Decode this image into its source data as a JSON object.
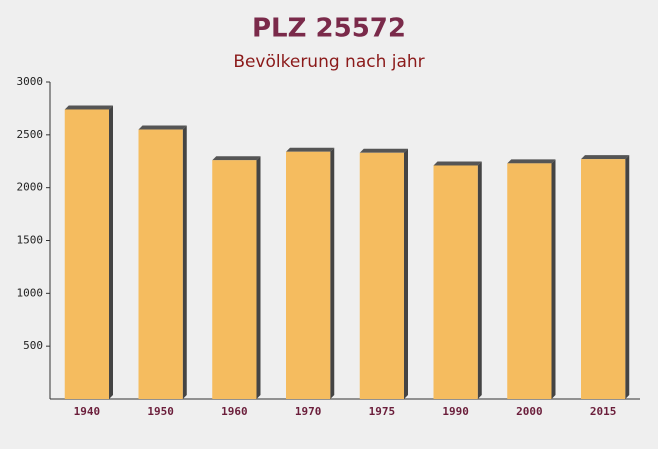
{
  "chart_data": {
    "type": "bar",
    "title": "PLZ 25572",
    "subtitle": "Bevölkerung nach jahr",
    "categories": [
      "1940",
      "1950",
      "1960",
      "1970",
      "1975",
      "1990",
      "2000",
      "2015"
    ],
    "values": [
      2740,
      2550,
      2260,
      2340,
      2330,
      2210,
      2230,
      2270
    ],
    "color": "#f5bc5f",
    "ylim": [
      0,
      3000
    ],
    "yticks": [
      500,
      1000,
      1500,
      2000,
      2500,
      3000
    ],
    "grid": false
  }
}
